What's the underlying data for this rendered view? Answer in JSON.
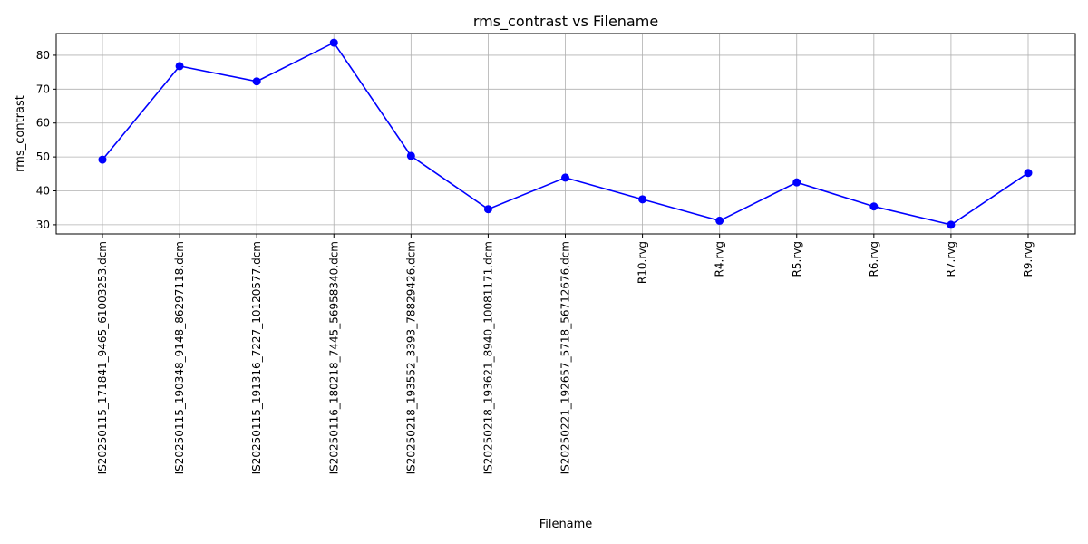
{
  "chart_data": {
    "type": "line",
    "title": "rms_contrast vs Filename",
    "xlabel": "Filename",
    "ylabel": "rms_contrast",
    "categories": [
      "IS20250115_171841_9465_61003253.dcm",
      "IS20250115_190348_9148_86297118.dcm",
      "IS20250115_191316_7227_10120577.dcm",
      "IS20250116_180218_7445_56958340.dcm",
      "IS20250218_193552_3393_78829426.dcm",
      "IS20250218_193621_8940_10081171.dcm",
      "IS20250221_192657_5718_56712676.dcm",
      "R10.rvg",
      "R4.rvg",
      "R5.rvg",
      "R6.rvg",
      "R7.rvg",
      "R9.rvg"
    ],
    "series": [
      {
        "values": [
          49.2,
          76.8,
          72.3,
          83.7,
          50.3,
          34.6,
          43.9,
          37.5,
          31.2,
          42.5,
          35.4,
          30.0,
          45.3
        ],
        "color": "#0000ff"
      }
    ],
    "ylim": [
      27.3,
      86.4
    ],
    "yticks": [
      30,
      40,
      50,
      60,
      70,
      80
    ],
    "grid": true
  }
}
